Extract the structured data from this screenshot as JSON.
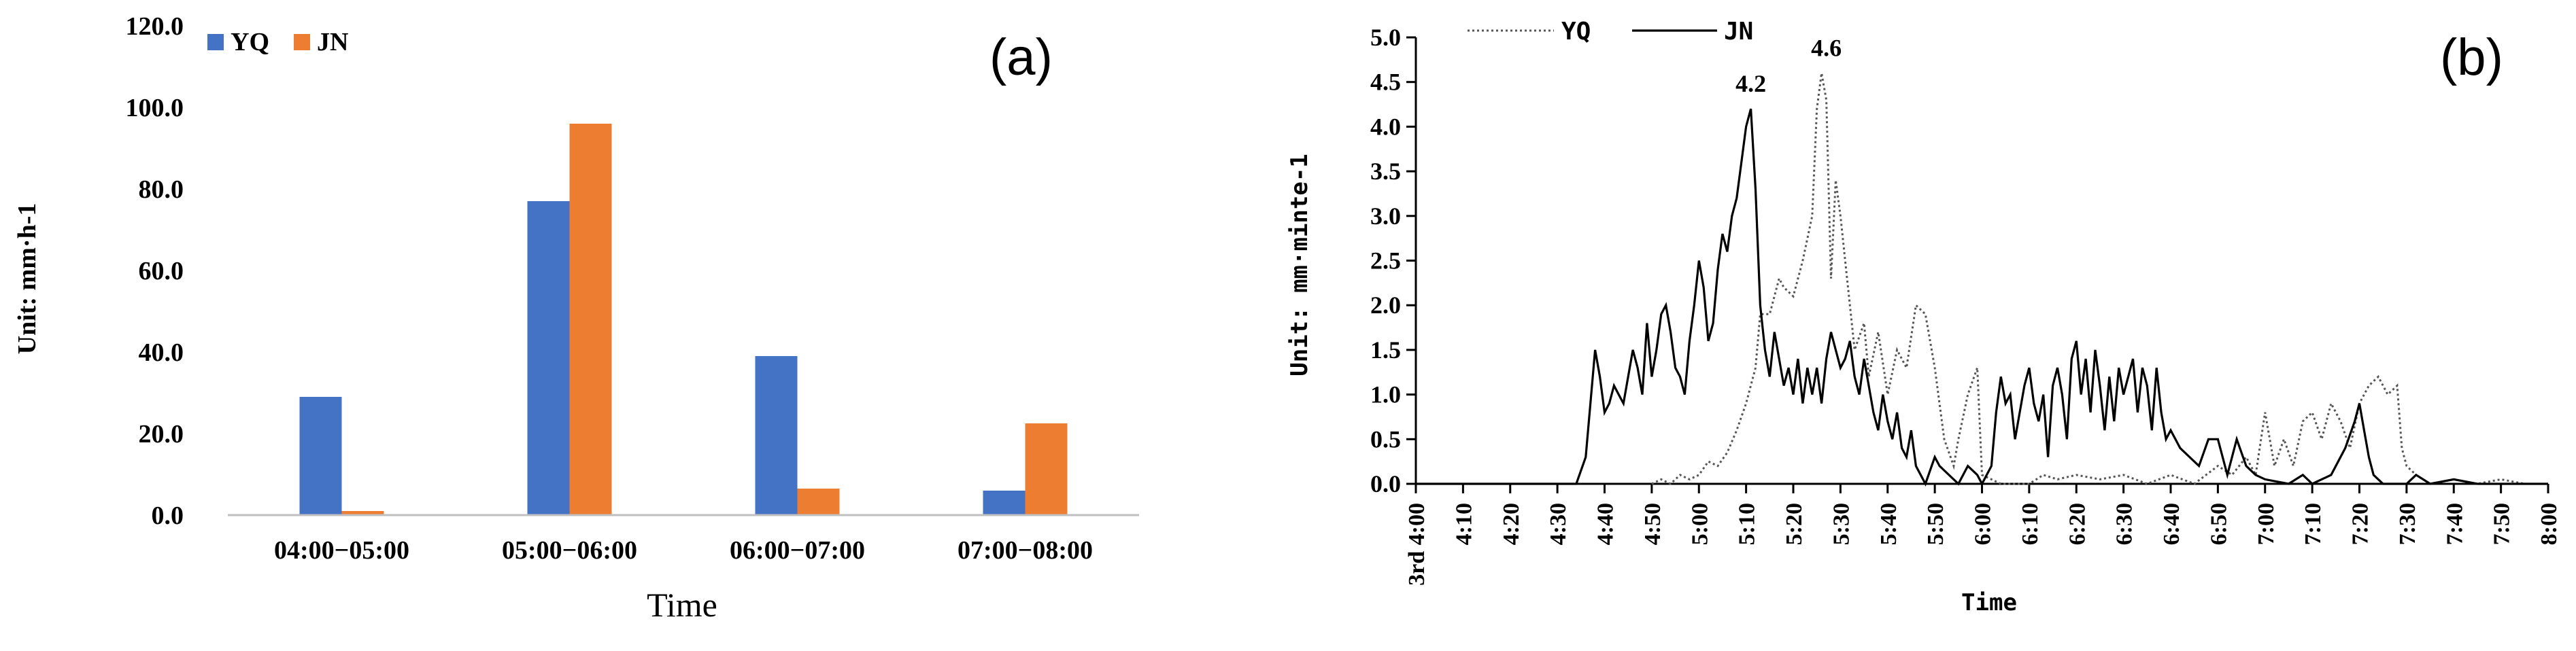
{
  "chart_data": [
    {
      "panel_label": "(a)",
      "type": "bar",
      "categories": [
        "04:00−05:00",
        "05:00−06:00",
        "06:00−07:00",
        "07:00−08:00"
      ],
      "series": [
        {
          "name": "YQ",
          "values": [
            29,
            77,
            39,
            6
          ],
          "color": "#4472C4"
        },
        {
          "name": "JN",
          "values": [
            1,
            96,
            6.5,
            22.5
          ],
          "color": "#ED7D31"
        }
      ],
      "ylim": [
        0,
        120
      ],
      "yticks": [
        "0.0",
        "20.0",
        "40.0",
        "60.0",
        "80.0",
        "100.0",
        "120.0"
      ],
      "xlabel": "Time",
      "ylabel": "Unit: mm·h-1",
      "legend": "top-left",
      "grid": false
    },
    {
      "panel_label": "(b)",
      "type": "line",
      "ylim": [
        0,
        5
      ],
      "yticks": [
        "0.0",
        "0.5",
        "1.0",
        "1.5",
        "2.0",
        "2.5",
        "3.0",
        "3.5",
        "4.0",
        "4.5",
        "5.0"
      ],
      "xticks": [
        "3rd 4:00",
        "4:10",
        "4:20",
        "4:30",
        "4:40",
        "4:50",
        "5:00",
        "5:10",
        "5:20",
        "5:30",
        "5:40",
        "5:50",
        "6:00",
        "6:10",
        "6:20",
        "6:30",
        "6:40",
        "6:50",
        "7:00",
        "7:10",
        "7:20",
        "7:30",
        "7:40",
        "7:50",
        "8:00"
      ],
      "xlabel": "Time",
      "ylabel": "Unit: mm·minte-1",
      "legend": "top-left",
      "grid": false,
      "annotations": [
        {
          "text": "4.2",
          "x": "5:11",
          "y": 4.2
        },
        {
          "text": "4.6",
          "x": "5:27",
          "y": 4.6
        }
      ],
      "series": [
        {
          "name": "YQ",
          "style": "dotted",
          "points": [
            [
              "4:50",
              0.0
            ],
            [
              "4:52",
              0.05
            ],
            [
              "4:54",
              0.0
            ],
            [
              "4:56",
              0.1
            ],
            [
              "4:58",
              0.05
            ],
            [
              "5:00",
              0.1
            ],
            [
              "5:02",
              0.25
            ],
            [
              "5:04",
              0.2
            ],
            [
              "5:06",
              0.35
            ],
            [
              "5:08",
              0.6
            ],
            [
              "5:10",
              0.9
            ],
            [
              "5:12",
              1.3
            ],
            [
              "5:13",
              1.9
            ],
            [
              "5:15",
              1.9
            ],
            [
              "5:17",
              2.3
            ],
            [
              "5:18",
              2.2
            ],
            [
              "5:20",
              2.1
            ],
            [
              "5:22",
              2.5
            ],
            [
              "5:24",
              3.0
            ],
            [
              "5:25",
              4.2
            ],
            [
              "5:26",
              4.6
            ],
            [
              "5:27",
              4.3
            ],
            [
              "5:28",
              2.3
            ],
            [
              "5:29",
              3.4
            ],
            [
              "5:30",
              3.0
            ],
            [
              "5:31",
              2.5
            ],
            [
              "5:32",
              2.0
            ],
            [
              "5:33",
              1.5
            ],
            [
              "5:35",
              1.8
            ],
            [
              "5:36",
              1.2
            ],
            [
              "5:38",
              1.7
            ],
            [
              "5:40",
              1.0
            ],
            [
              "5:42",
              1.5
            ],
            [
              "5:44",
              1.3
            ],
            [
              "5:46",
              2.0
            ],
            [
              "5:48",
              1.9
            ],
            [
              "5:50",
              1.3
            ],
            [
              "5:52",
              0.5
            ],
            [
              "5:54",
              0.2
            ],
            [
              "5:55",
              0.5
            ],
            [
              "5:57",
              1.0
            ],
            [
              "5:59",
              1.3
            ],
            [
              "6:00",
              0.1
            ],
            [
              "6:02",
              0.05
            ],
            [
              "6:04",
              0.0
            ],
            [
              "6:10",
              0.0
            ],
            [
              "6:13",
              0.1
            ],
            [
              "6:16",
              0.05
            ],
            [
              "6:20",
              0.1
            ],
            [
              "6:25",
              0.05
            ],
            [
              "6:30",
              0.1
            ],
            [
              "6:35",
              0.0
            ],
            [
              "6:40",
              0.1
            ],
            [
              "6:45",
              0.0
            ],
            [
              "6:50",
              0.2
            ],
            [
              "6:53",
              0.1
            ],
            [
              "6:56",
              0.3
            ],
            [
              "6:58",
              0.1
            ],
            [
              "7:00",
              0.8
            ],
            [
              "7:02",
              0.2
            ],
            [
              "7:04",
              0.5
            ],
            [
              "7:06",
              0.2
            ],
            [
              "7:08",
              0.7
            ],
            [
              "7:10",
              0.8
            ],
            [
              "7:12",
              0.5
            ],
            [
              "7:14",
              0.9
            ],
            [
              "7:16",
              0.7
            ],
            [
              "7:18",
              0.4
            ],
            [
              "7:20",
              0.9
            ],
            [
              "7:22",
              1.1
            ],
            [
              "7:24",
              1.2
            ],
            [
              "7:26",
              1.0
            ],
            [
              "7:28",
              1.1
            ],
            [
              "7:29",
              0.4
            ],
            [
              "7:30",
              0.2
            ],
            [
              "7:32",
              0.1
            ],
            [
              "7:35",
              0.0
            ],
            [
              "7:40",
              0.05
            ],
            [
              "7:45",
              0.0
            ],
            [
              "7:50",
              0.05
            ],
            [
              "7:55",
              0.0
            ],
            [
              "8:00",
              0.0
            ]
          ]
        },
        {
          "name": "JN",
          "style": "solid",
          "points": [
            [
              "4:00",
              0.0
            ],
            [
              "4:34",
              0.0
            ],
            [
              "4:36",
              0.3
            ],
            [
              "4:38",
              1.5
            ],
            [
              "4:39",
              1.2
            ],
            [
              "4:40",
              0.8
            ],
            [
              "4:41",
              0.9
            ],
            [
              "4:42",
              1.1
            ],
            [
              "4:43",
              1.0
            ],
            [
              "4:44",
              0.9
            ],
            [
              "4:45",
              1.2
            ],
            [
              "4:46",
              1.5
            ],
            [
              "4:47",
              1.3
            ],
            [
              "4:48",
              1.0
            ],
            [
              "4:49",
              1.8
            ],
            [
              "4:50",
              1.2
            ],
            [
              "4:51",
              1.5
            ],
            [
              "4:52",
              1.9
            ],
            [
              "4:53",
              2.0
            ],
            [
              "4:54",
              1.7
            ],
            [
              "4:55",
              1.3
            ],
            [
              "4:56",
              1.2
            ],
            [
              "4:57",
              1.0
            ],
            [
              "4:58",
              1.6
            ],
            [
              "4:59",
              2.0
            ],
            [
              "5:00",
              2.5
            ],
            [
              "5:01",
              2.2
            ],
            [
              "5:02",
              1.6
            ],
            [
              "5:03",
              1.8
            ],
            [
              "5:04",
              2.4
            ],
            [
              "5:05",
              2.8
            ],
            [
              "5:06",
              2.6
            ],
            [
              "5:07",
              3.0
            ],
            [
              "5:08",
              3.2
            ],
            [
              "5:09",
              3.6
            ],
            [
              "5:10",
              4.0
            ],
            [
              "5:11",
              4.2
            ],
            [
              "5:12",
              3.3
            ],
            [
              "5:13",
              2.0
            ],
            [
              "5:14",
              1.5
            ],
            [
              "5:15",
              1.2
            ],
            [
              "5:16",
              1.7
            ],
            [
              "5:17",
              1.4
            ],
            [
              "5:18",
              1.1
            ],
            [
              "5:19",
              1.3
            ],
            [
              "5:20",
              1.0
            ],
            [
              "5:21",
              1.4
            ],
            [
              "5:22",
              0.9
            ],
            [
              "5:23",
              1.3
            ],
            [
              "5:24",
              1.0
            ],
            [
              "5:25",
              1.3
            ],
            [
              "5:26",
              0.9
            ],
            [
              "5:27",
              1.4
            ],
            [
              "5:28",
              1.7
            ],
            [
              "5:29",
              1.5
            ],
            [
              "5:30",
              1.3
            ],
            [
              "5:31",
              1.4
            ],
            [
              "5:32",
              1.6
            ],
            [
              "5:33",
              1.2
            ],
            [
              "5:34",
              1.0
            ],
            [
              "5:35",
              1.4
            ],
            [
              "5:36",
              1.1
            ],
            [
              "5:37",
              0.8
            ],
            [
              "5:38",
              0.6
            ],
            [
              "5:39",
              1.0
            ],
            [
              "5:40",
              0.7
            ],
            [
              "5:41",
              0.5
            ],
            [
              "5:42",
              0.8
            ],
            [
              "5:43",
              0.4
            ],
            [
              "5:44",
              0.3
            ],
            [
              "5:45",
              0.6
            ],
            [
              "5:46",
              0.2
            ],
            [
              "5:48",
              0.0
            ],
            [
              "5:50",
              0.3
            ],
            [
              "5:51",
              0.2
            ],
            [
              "5:53",
              0.1
            ],
            [
              "5:55",
              0.0
            ],
            [
              "5:57",
              0.2
            ],
            [
              "5:59",
              0.1
            ],
            [
              "6:00",
              0.0
            ],
            [
              "6:02",
              0.2
            ],
            [
              "6:03",
              0.8
            ],
            [
              "6:04",
              1.2
            ],
            [
              "6:05",
              0.9
            ],
            [
              "6:06",
              1.0
            ],
            [
              "6:07",
              0.5
            ],
            [
              "6:08",
              0.8
            ],
            [
              "6:09",
              1.1
            ],
            [
              "6:10",
              1.3
            ],
            [
              "6:11",
              0.9
            ],
            [
              "6:12",
              0.7
            ],
            [
              "6:13",
              1.0
            ],
            [
              "6:14",
              0.3
            ],
            [
              "6:15",
              1.1
            ],
            [
              "6:16",
              1.3
            ],
            [
              "6:17",
              1.0
            ],
            [
              "6:18",
              0.5
            ],
            [
              "6:19",
              1.4
            ],
            [
              "6:20",
              1.6
            ],
            [
              "6:21",
              1.0
            ],
            [
              "6:22",
              1.4
            ],
            [
              "6:23",
              0.8
            ],
            [
              "6:24",
              1.5
            ],
            [
              "6:25",
              1.1
            ],
            [
              "6:26",
              0.6
            ],
            [
              "6:27",
              1.2
            ],
            [
              "6:28",
              0.7
            ],
            [
              "6:29",
              1.3
            ],
            [
              "6:30",
              1.0
            ],
            [
              "6:31",
              1.2
            ],
            [
              "6:32",
              1.4
            ],
            [
              "6:33",
              0.8
            ],
            [
              "6:34",
              1.3
            ],
            [
              "6:35",
              1.1
            ],
            [
              "6:36",
              0.6
            ],
            [
              "6:37",
              1.3
            ],
            [
              "6:38",
              0.8
            ],
            [
              "6:39",
              0.5
            ],
            [
              "6:40",
              0.6
            ],
            [
              "6:42",
              0.4
            ],
            [
              "6:44",
              0.3
            ],
            [
              "6:46",
              0.2
            ],
            [
              "6:48",
              0.5
            ],
            [
              "6:50",
              0.5
            ],
            [
              "6:52",
              0.1
            ],
            [
              "6:54",
              0.5
            ],
            [
              "6:56",
              0.2
            ],
            [
              "6:58",
              0.1
            ],
            [
              "7:00",
              0.05
            ],
            [
              "7:05",
              0.0
            ],
            [
              "7:08",
              0.1
            ],
            [
              "7:10",
              0.0
            ],
            [
              "7:14",
              0.1
            ],
            [
              "7:17",
              0.4
            ],
            [
              "7:19",
              0.7
            ],
            [
              "7:20",
              0.9
            ],
            [
              "7:21",
              0.6
            ],
            [
              "7:22",
              0.3
            ],
            [
              "7:23",
              0.1
            ],
            [
              "7:25",
              0.0
            ],
            [
              "7:30",
              0.0
            ],
            [
              "7:32",
              0.1
            ],
            [
              "7:35",
              0.0
            ],
            [
              "7:40",
              0.05
            ],
            [
              "7:45",
              0.0
            ],
            [
              "7:50",
              0.0
            ],
            [
              "8:00",
              0.0
            ]
          ]
        }
      ]
    }
  ]
}
